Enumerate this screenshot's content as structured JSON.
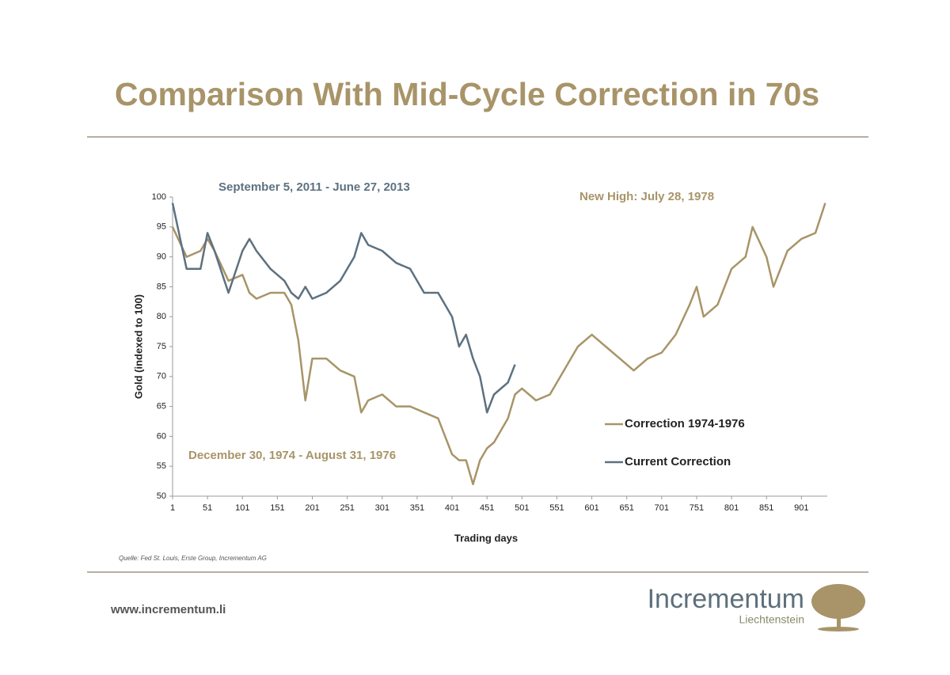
{
  "chart_data": {
    "type": "line",
    "title": "Comparison With Mid-Cycle Correction in 70s",
    "x_label": "Trading days",
    "y_label": "Gold (indexed to 100)",
    "xlim": [
      1,
      938
    ],
    "ylim": [
      50,
      100
    ],
    "xticks": [
      1,
      51,
      101,
      151,
      201,
      251,
      301,
      351,
      401,
      451,
      501,
      551,
      601,
      651,
      701,
      751,
      801,
      851,
      901
    ],
    "yticks": [
      50,
      55,
      60,
      65,
      70,
      75,
      80,
      85,
      90,
      95,
      100
    ],
    "x": [
      1,
      21,
      41,
      51,
      61,
      81,
      101,
      111,
      121,
      141,
      161,
      171,
      181,
      191,
      201,
      221,
      241,
      261,
      271,
      281,
      301,
      321,
      341,
      361,
      381,
      401,
      411,
      421,
      431,
      441,
      451,
      461,
      481,
      491,
      501,
      521,
      541,
      561,
      581,
      601,
      621,
      641,
      661,
      681,
      701,
      721,
      741,
      751,
      761,
      781,
      801,
      821,
      831,
      851,
      861,
      881,
      901,
      921,
      935
    ],
    "series": [
      {
        "name": "Correction 1974-1976",
        "color": "#a89468",
        "values": [
          95,
          90,
          91,
          93,
          91,
          86,
          87,
          84,
          83,
          84,
          84,
          82,
          76,
          66,
          73,
          73,
          71,
          70,
          64,
          66,
          67,
          65,
          65,
          64,
          63,
          57,
          56,
          56,
          52,
          56,
          58,
          59,
          63,
          67,
          68,
          66,
          67,
          71,
          75,
          77,
          75,
          73,
          71,
          73,
          74,
          77,
          82,
          85,
          80,
          82,
          88,
          90,
          95,
          90,
          85,
          91,
          93,
          94,
          99
        ]
      },
      {
        "name": "Current Correction",
        "color": "#5d7180",
        "values": [
          99,
          88,
          88,
          94,
          91,
          84,
          91,
          93,
          91,
          88,
          86,
          84,
          83,
          85,
          83,
          84,
          86,
          90,
          94,
          92,
          91,
          89,
          88,
          84,
          84,
          80,
          75,
          77,
          73,
          70,
          64,
          67,
          69,
          72,
          null,
          null,
          null,
          null,
          null,
          null,
          null,
          null,
          null,
          null,
          null,
          null,
          null,
          null,
          null,
          null,
          null,
          null,
          null,
          null,
          null,
          null,
          null,
          null,
          null
        ]
      }
    ],
    "annotations": [
      {
        "text": "September 5, 2011 -  June 27, 2013",
        "color": "#5d7180"
      },
      {
        "text": "New High: July 28, 1978",
        "color": "#a89468"
      },
      {
        "text": "December 30, 1974 - August 31, 1976",
        "color": "#a89468"
      }
    ],
    "source": "Quelle: Fed St. Louis, Erste Group, Incrementum AG"
  },
  "footer": {
    "url": "www.incrementum.li",
    "brand": "Incrementum",
    "brand_sub": "Liechtenstein"
  }
}
